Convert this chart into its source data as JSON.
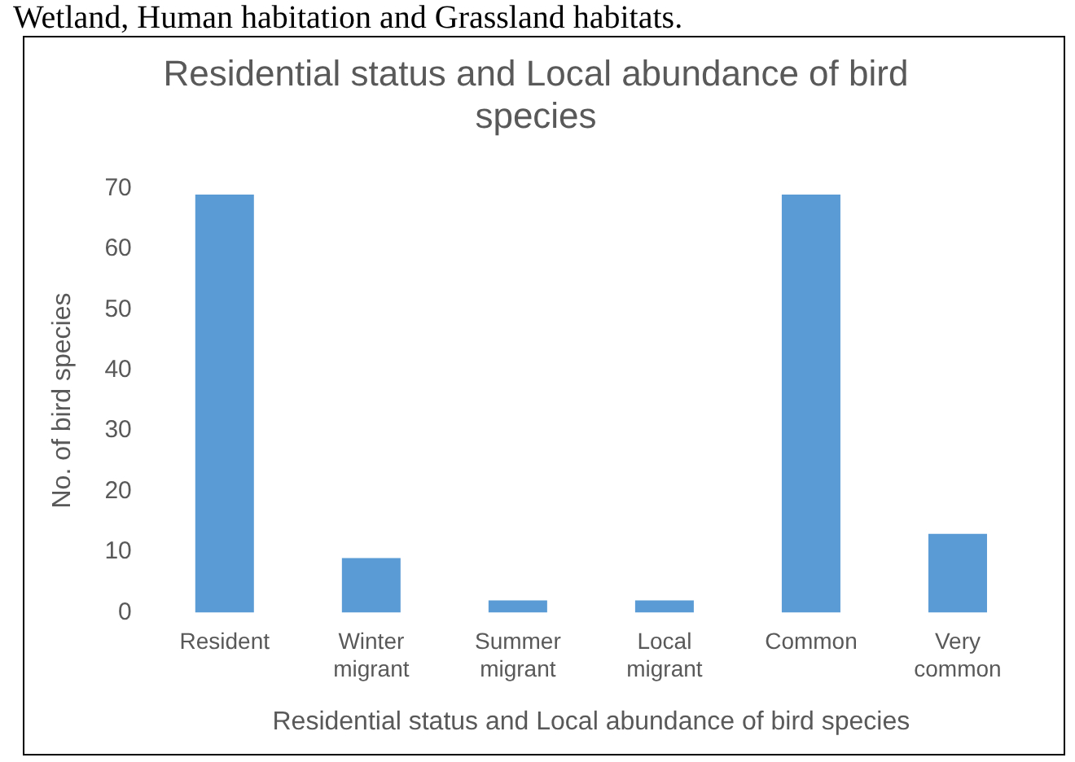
{
  "chart_data": {
    "type": "bar",
    "title": "Residential status and Local abundance of bird species",
    "xlabel": "Residential status and Local abundance of bird species",
    "ylabel": "No. of bird species",
    "annotations": [
      "Wetland, Human habitation and Grassland habitats."
    ],
    "categories": [
      "Resident",
      "Winter migrant",
      "Summer migrant",
      "Local migrant",
      "Common",
      "Very common"
    ],
    "values": [
      69,
      9,
      2,
      2,
      69,
      13
    ],
    "color": "#5b9bd5",
    "ylim": [
      0,
      70
    ],
    "yticks": [
      0,
      10,
      20,
      30,
      40,
      50,
      60,
      70
    ],
    "grid": false,
    "legend": false
  }
}
